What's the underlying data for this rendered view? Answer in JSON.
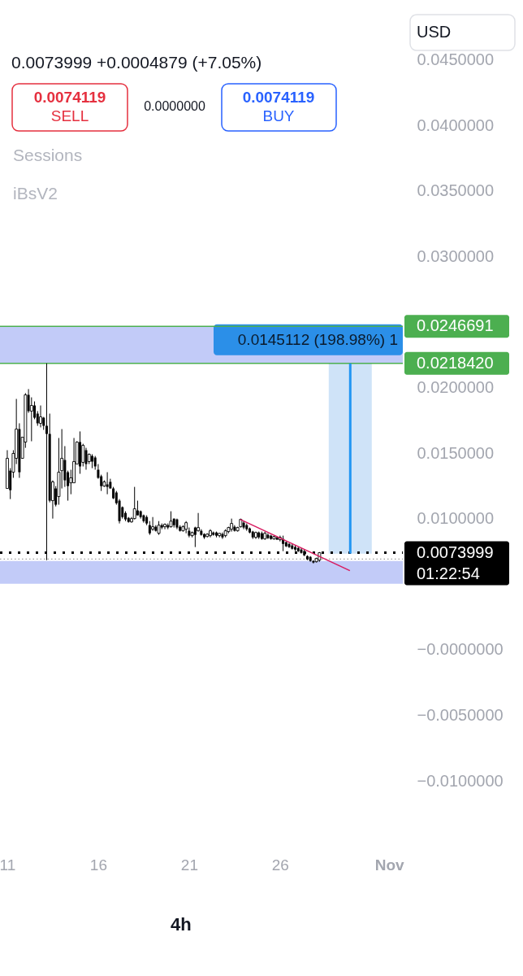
{
  "chart_data": {
    "type": "candlestick",
    "subtitle": "0.0073999 +0.0004879 (+7.05%)",
    "color": "#000000",
    "x": [
      11,
      11.1667,
      11.3333,
      11.5,
      11.6667,
      11.8333,
      12,
      12.1667,
      12.3333,
      12.5,
      12.6667,
      12.8333,
      13,
      13.1667,
      13.3333,
      13.5,
      13.6667,
      13.8333,
      14,
      14.1667,
      14.3333,
      14.5,
      14.6667,
      14.8333,
      15,
      15.1667,
      15.3333,
      15.5,
      15.6667,
      15.8333,
      16,
      16.1667,
      16.3333,
      16.5,
      16.6667,
      16.8333,
      17,
      17.1667,
      17.3333,
      17.5,
      17.6667,
      17.8333,
      18,
      18.1667,
      18.3333,
      18.5,
      18.6667,
      18.8333,
      19,
      19.1667,
      19.3333,
      19.5,
      19.6667,
      19.8333,
      20,
      20.1667,
      20.3333,
      20.5,
      20.6667,
      20.8333,
      21,
      21.1667,
      21.3333,
      21.5,
      21.6667,
      21.8333,
      22,
      22.1667,
      22.3333,
      22.5,
      22.6667,
      22.8333,
      23,
      23.1667,
      23.3333,
      23.5,
      23.6667,
      23.8333,
      24,
      24.1667,
      24.3333,
      24.5,
      24.6667,
      24.8333,
      25,
      25.1667,
      25.3333,
      25.5,
      25.6667,
      25.8333,
      26,
      26.1667,
      26.3333,
      26.5,
      26.6667,
      26.8333,
      27,
      27.1667,
      27.3333,
      27.5,
      27.6667,
      27.8333,
      28,
      28.1667
    ],
    "ohlc": [
      [
        0.0123,
        0.01522,
        0.0123,
        0.0146
      ],
      [
        0.01366,
        0.01385,
        0.01149,
        0.01217
      ],
      [
        0.01354,
        0.01522,
        0.01311,
        0.01497
      ],
      [
        0.0146,
        0.01913,
        0.01416,
        0.01683
      ],
      [
        0.01683,
        0.01727,
        0.01311,
        0.01354
      ],
      [
        0.0146,
        0.01621,
        0.0146,
        0.01621
      ],
      [
        0.01584,
        0.01957,
        0.0154,
        0.01944
      ],
      [
        0.01944,
        0.01988,
        0.01807,
        0.0182
      ],
      [
        0.0182,
        0.01925,
        0.0159,
        0.01863
      ],
      [
        0.01863,
        0.01894,
        0.01758,
        0.0177
      ],
      [
        0.01801,
        0.0182,
        0.01708,
        0.01727
      ],
      [
        0.01727,
        0.01863,
        0.01696,
        0.01776
      ],
      [
        0.0177,
        0.01776,
        0.01677,
        0.01708
      ],
      [
        0.01708,
        0.021842,
        0.00683,
        0.01646
      ],
      [
        0.01646,
        0.01801,
        0.01124,
        0.01137
      ],
      [
        0.01137,
        0.01292,
        0.01,
        0.0128
      ],
      [
        0.0123,
        0.01248,
        0.01093,
        0.01106
      ],
      [
        0.01168,
        0.01615,
        0.01106,
        0.01354
      ],
      [
        0.01366,
        0.01683,
        0.0123,
        0.0146
      ],
      [
        0.01447,
        0.01553,
        0.01242,
        0.01292
      ],
      [
        0.01354,
        0.01366,
        0.01137,
        0.01248
      ],
      [
        0.01273,
        0.01373,
        0.01186,
        0.01311
      ],
      [
        0.01273,
        0.01615,
        0.01273,
        0.01435
      ],
      [
        0.01416,
        0.0159,
        0.01416,
        0.01584
      ],
      [
        0.01584,
        0.01665,
        0.01342,
        0.01398
      ],
      [
        0.01429,
        0.01571,
        0.01398,
        0.01559
      ],
      [
        0.01522,
        0.0154,
        0.01373,
        0.01416
      ],
      [
        0.01435,
        0.01497,
        0.01416,
        0.01491
      ],
      [
        0.01478,
        0.01491,
        0.01385,
        0.01435
      ],
      [
        0.01466,
        0.01478,
        0.01373,
        0.01398
      ],
      [
        0.01373,
        0.01416,
        0.01304,
        0.01311
      ],
      [
        0.01323,
        0.01335,
        0.01211,
        0.01248
      ],
      [
        0.01248,
        0.01292,
        0.01242,
        0.0128
      ],
      [
        0.01261,
        0.01354,
        0.01186,
        0.01242
      ],
      [
        0.0128,
        0.01304,
        0.0123,
        0.0123
      ],
      [
        0.0123,
        0.01242,
        0.01149,
        0.01155
      ],
      [
        0.01199,
        0.01211,
        0.01106,
        0.01118
      ],
      [
        0.01137,
        0.01149,
        0.00963,
        0.00981
      ],
      [
        0.01087,
        0.01093,
        0.01,
        0.01012
      ],
      [
        0.01043,
        0.01056,
        0.00981,
        0.00994
      ],
      [
        0.01006,
        0.01012,
        0.00969,
        0.00975
      ],
      [
        0.00975,
        0.01012,
        0.00969,
        0.01
      ],
      [
        0.01,
        0.01242,
        0.00994,
        0.01075
      ],
      [
        0.01062,
        0.01137,
        0.01025,
        0.01025
      ],
      [
        0.01056,
        0.01062,
        0.01,
        0.01012
      ],
      [
        0.01025,
        0.01031,
        0.00969,
        0.00981
      ],
      [
        0.01012,
        0.01025,
        0.0095,
        0.00963
      ],
      [
        0.0095,
        0.00981,
        0.00876,
        0.00888
      ],
      [
        0.00919,
        0.01012,
        0.00907,
        0.00938
      ],
      [
        0.00938,
        0.0095,
        0.00901,
        0.00907
      ],
      [
        0.00888,
        0.00981,
        0.00876,
        0.0095
      ],
      [
        0.0095,
        0.00963,
        0.00919,
        0.00932
      ],
      [
        0.00938,
        0.00963,
        0.00919,
        0.00957
      ],
      [
        0.0095,
        0.00963,
        0.00919,
        0.00932
      ],
      [
        0.00938,
        0.01056,
        0.00932,
        0.00981
      ],
      [
        0.01,
        0.01,
        0.00932,
        0.0095
      ],
      [
        0.00994,
        0.01,
        0.00919,
        0.00932
      ],
      [
        0.00938,
        0.0095,
        0.00901,
        0.00907
      ],
      [
        0.00907,
        0.0095,
        0.00901,
        0.00938
      ],
      [
        0.00919,
        0.00981,
        0.00888,
        0.00969
      ],
      [
        0.00907,
        0.00932,
        0.00857,
        0.0087
      ],
      [
        0.0087,
        0.00901,
        0.00857,
        0.00894
      ],
      [
        0.00932,
        0.00938,
        0.00783,
        0.00876
      ],
      [
        0.00907,
        0.01043,
        0.00901,
        0.00932
      ],
      [
        0.00907,
        0.00919,
        0.0087,
        0.00876
      ],
      [
        0.00882,
        0.00888,
        0.00845,
        0.00857
      ],
      [
        0.00863,
        0.00888,
        0.00857,
        0.00882
      ],
      [
        0.0087,
        0.00919,
        0.00857,
        0.00907
      ],
      [
        0.00894,
        0.00901,
        0.0087,
        0.00876
      ],
      [
        0.00894,
        0.00901,
        0.00857,
        0.0087
      ],
      [
        0.0087,
        0.00888,
        0.00857,
        0.00888
      ],
      [
        0.00882,
        0.00894,
        0.00845,
        0.00857
      ],
      [
        0.0087,
        0.00919,
        0.00857,
        0.00907
      ],
      [
        0.00901,
        0.00938,
        0.00888,
        0.00932
      ],
      [
        0.00919,
        0.01,
        0.00901,
        0.00963
      ],
      [
        0.00938,
        0.0095,
        0.00901,
        0.00907
      ],
      [
        0.00907,
        0.00938,
        0.00901,
        0.00932
      ],
      [
        0.00938,
        0.01,
        0.00932,
        0.00994
      ],
      [
        0.00969,
        0.00981,
        0.00919,
        0.00932
      ],
      [
        0.0095,
        0.00963,
        0.00907,
        0.00919
      ],
      [
        0.00925,
        0.00932,
        0.00888,
        0.00894
      ],
      [
        0.00901,
        0.00907,
        0.00845,
        0.00857
      ],
      [
        0.00857,
        0.00901,
        0.00845,
        0.00894
      ],
      [
        0.00894,
        0.00901,
        0.00845,
        0.00857
      ],
      [
        0.00888,
        0.00901,
        0.00839,
        0.00845
      ],
      [
        0.00845,
        0.00901,
        0.00839,
        0.00888
      ],
      [
        0.00876,
        0.00888,
        0.00845,
        0.00851
      ],
      [
        0.0087,
        0.00876,
        0.00839,
        0.00845
      ],
      [
        0.00845,
        0.0087,
        0.00839,
        0.00863
      ],
      [
        0.00857,
        0.00863,
        0.00839,
        0.00839
      ],
      [
        0.00839,
        0.0087,
        0.00826,
        0.00857
      ],
      [
        0.00845,
        0.0087,
        0.00752,
        0.00807
      ],
      [
        0.0082,
        0.00826,
        0.00783,
        0.00789
      ],
      [
        0.00807,
        0.00814,
        0.00776,
        0.00783
      ],
      [
        0.00795,
        0.00807,
        0.00764,
        0.0077
      ],
      [
        0.00783,
        0.00795,
        0.00752,
        0.00764
      ],
      [
        0.00776,
        0.00783,
        0.00745,
        0.00752
      ],
      [
        0.00764,
        0.00776,
        0.00733,
        0.00739
      ],
      [
        0.00752,
        0.00764,
        0.00714,
        0.0072
      ],
      [
        0.00714,
        0.0072,
        0.00683,
        0.00689
      ],
      [
        0.00708,
        0.00714,
        0.00671,
        0.00677
      ],
      [
        0.00677,
        0.00683,
        0.00658,
        0.00665
      ],
      [
        0.00671,
        0.00702,
        0.00665,
        0.00696
      ],
      [
        0.00683,
        0.00745,
        0.00671,
        0.0074
      ]
    ],
    "series": [
      {
        "type": "line",
        "x": [
          23.81,
          29.84
        ],
        "values": [
          0.00994,
          0.00603
        ],
        "color": "#d81b60"
      },
      {
        "type": "bar",
        "x": [
          29.86
        ],
        "base": [
          0.00733
        ],
        "values": [
          0.0145112
        ],
        "color": "#cfe3f8",
        "value_labels": [
          "0.0145112 (198.98%) 1"
        ]
      },
      {
        "type": "line",
        "x": [
          29.86,
          29.86
        ],
        "values": [
          0.00733,
          0.02184
        ],
        "color": "#2196f3"
      }
    ],
    "xlim": [
      10.6,
      32.75
    ],
    "xticks": [
      11,
      16,
      21,
      26,
      {
        "value": 32,
        "label": "Nov"
      }
    ],
    "ylim": [
      -0.01,
      0.045
    ],
    "yticks": [
      {
        "value": 0.045,
        "label": "0.0450000"
      },
      {
        "value": 0.04,
        "label": "0.0400000"
      },
      {
        "value": 0.035,
        "label": "0.0350000"
      },
      {
        "value": 0.03,
        "label": "0.0300000"
      },
      {
        "value": 0.02,
        "label": "0.0200000"
      },
      {
        "value": 0.015,
        "label": "0.0150000"
      },
      {
        "value": 0.01,
        "label": "0.0100000"
      },
      {
        "value": 0,
        "label": "−0.0000000"
      },
      {
        "value": -0.005,
        "label": "−0.0050000"
      },
      {
        "value": -0.01,
        "label": "−0.0100000"
      }
    ],
    "bands": [
      {
        "axis": "y",
        "from": 0.021842,
        "to": 0.0246691,
        "color": "#c2cbf8"
      },
      {
        "axis": "y",
        "from": 0.00503,
        "to": 0.00677,
        "color": "#c2cbf8"
      }
    ],
    "ref_lines": [
      {
        "axis": "y",
        "value": 0.0246691,
        "label": "0.0246691",
        "color": "#4caf50"
      },
      {
        "axis": "y",
        "value": 0.021842,
        "label": "0.0218420",
        "color": "#4caf50"
      },
      {
        "axis": "y",
        "value": 0.0073999,
        "label": "0.0073999",
        "color": "#000000",
        "line_style": "dotted"
      },
      {
        "axis": "y",
        "value": 0.006912,
        "color": "#9e9e9e",
        "line_style": "dotted"
      }
    ],
    "annotations": [
      "0.0074119",
      "SELL",
      "0.0000000",
      "0.0074119",
      "BUY",
      "Sessions",
      "iBsV2",
      "USD",
      "01:22:54",
      "4h"
    ]
  }
}
